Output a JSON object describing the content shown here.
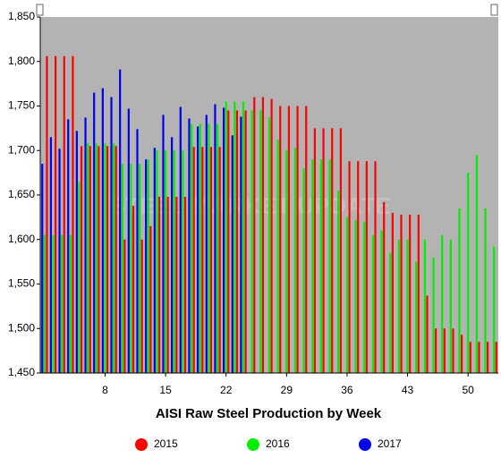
{
  "chart_data": {
    "type": "bar",
    "title": "AISI Raw Steel Production by Week",
    "watermark": "STEEL MARKET UPDATE",
    "x": [
      1,
      2,
      3,
      4,
      5,
      6,
      7,
      8,
      9,
      10,
      11,
      12,
      13,
      14,
      15,
      16,
      17,
      18,
      19,
      20,
      21,
      22,
      23,
      24,
      25,
      26,
      27,
      28,
      29,
      30,
      31,
      32,
      33,
      34,
      35,
      36,
      37,
      38,
      39,
      40,
      41,
      42,
      43,
      44,
      45,
      46,
      47,
      48,
      49,
      50,
      51,
      52,
      53
    ],
    "xlim": [
      0.5,
      53.5
    ],
    "xticks": [
      8,
      15,
      22,
      29,
      36,
      43,
      50
    ],
    "ylim": [
      1450,
      1850
    ],
    "yticks": [
      {
        "value": 1450,
        "label": "1,450"
      },
      {
        "value": 1500,
        "label": "1,500"
      },
      {
        "value": 1550,
        "label": "1,550"
      },
      {
        "value": 1600,
        "label": "1,600"
      },
      {
        "value": 1650,
        "label": "1,650"
      },
      {
        "value": 1700,
        "label": "1,700"
      },
      {
        "value": 1750,
        "label": "1,750"
      },
      {
        "value": 1800,
        "label": "1,800"
      },
      {
        "value": 1850,
        "label": "1,850"
      }
    ],
    "series": [
      {
        "name": "2015",
        "color": "#ff0000",
        "values": [
          1806,
          1806,
          1806,
          1806,
          1705,
          1705,
          1705,
          1705,
          1705,
          1600,
          1638,
          1600,
          1615,
          1648,
          1648,
          1648,
          1648,
          1704,
          1704,
          1704,
          1704,
          1745,
          1745,
          1745,
          1760,
          1760,
          1758,
          1750,
          1750,
          1750,
          1750,
          1725,
          1725,
          1725,
          1725,
          1688,
          1688,
          1688,
          1688,
          1642,
          1630,
          1628,
          1628,
          1628,
          1537,
          1500,
          1500,
          1500,
          1493,
          1485,
          1485,
          1485,
          1485
        ]
      },
      {
        "name": "2016",
        "color": "#00ee00",
        "values": [
          1605,
          1605,
          1605,
          1605,
          1665,
          1708,
          1708,
          1708,
          1708,
          1685,
          1685,
          1685,
          1690,
          1700,
          1700,
          1700,
          1700,
          1730,
          1730,
          1730,
          1730,
          1755,
          1755,
          1755,
          1745,
          1745,
          1737,
          1712,
          1700,
          1703,
          1680,
          1690,
          1690,
          1690,
          1655,
          1625,
          1622,
          1620,
          1605,
          1610,
          1585,
          1600,
          1600,
          1575,
          1600,
          1580,
          1605,
          1600,
          1635,
          1675,
          1695,
          1635,
          1592
        ]
      },
      {
        "name": "2017",
        "color": "#0000ee",
        "values": [
          1685,
          1715,
          1702,
          1735,
          1722,
          1737,
          1765,
          1770,
          1760,
          1791,
          1747,
          1724,
          1690,
          1703,
          1740,
          1715,
          1749,
          1736,
          1727,
          1740,
          1752,
          1748,
          1717,
          1738,
          null,
          null,
          null,
          null,
          null,
          null,
          null,
          null,
          null,
          null,
          null,
          null,
          null,
          null,
          null,
          null,
          null,
          null,
          null,
          null,
          null,
          null,
          null,
          null,
          null,
          null,
          null,
          null,
          null
        ]
      }
    ]
  }
}
